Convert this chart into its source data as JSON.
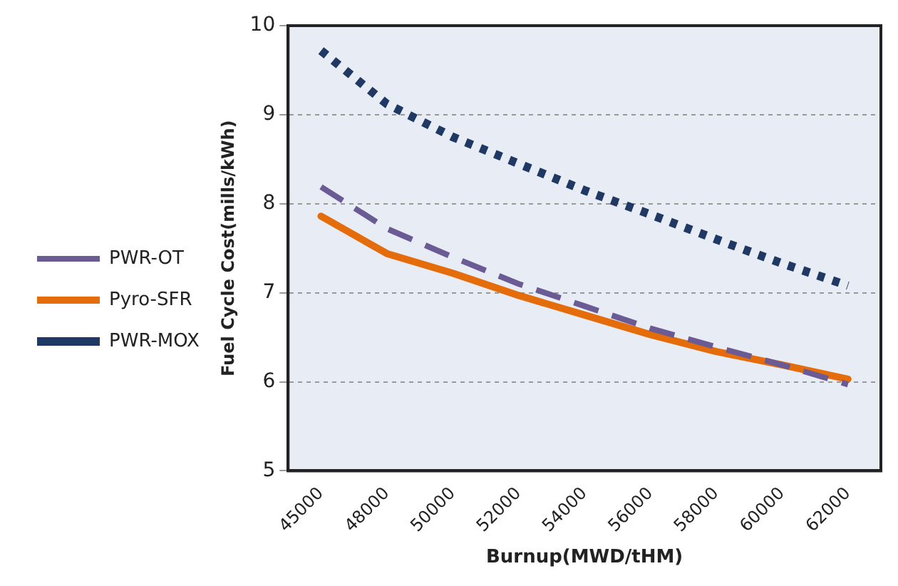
{
  "chart_data": {
    "type": "line",
    "xlabel": "Burnup(MWD/tHM)",
    "ylabel": "Fuel Cycle Cost(mills/kWh)",
    "categories": [
      "45000",
      "48000",
      "50000",
      "52000",
      "54000",
      "56000",
      "58000",
      "60000",
      "62000"
    ],
    "series": [
      {
        "name": "PWR-OT",
        "color": "#6b5b95",
        "line_style": "dashed",
        "values": [
          8.19,
          7.72,
          7.4,
          7.1,
          6.85,
          6.6,
          6.39,
          6.19,
          5.97
        ]
      },
      {
        "name": "Pyro-SFR",
        "color": "#e46c0a",
        "line_style": "solid",
        "values": [
          7.86,
          7.44,
          7.22,
          6.97,
          6.75,
          6.53,
          6.34,
          6.19,
          6.03
        ]
      },
      {
        "name": "PWR-MOX",
        "color": "#1f3864",
        "line_style": "dotted",
        "values": [
          9.72,
          9.12,
          8.75,
          8.45,
          8.15,
          7.88,
          7.6,
          7.33,
          7.08
        ]
      }
    ],
    "ylim": [
      5,
      10
    ],
    "yticks": [
      5,
      6,
      7,
      8,
      9,
      10
    ],
    "grid": "y",
    "legend": "left",
    "marker": "none"
  }
}
